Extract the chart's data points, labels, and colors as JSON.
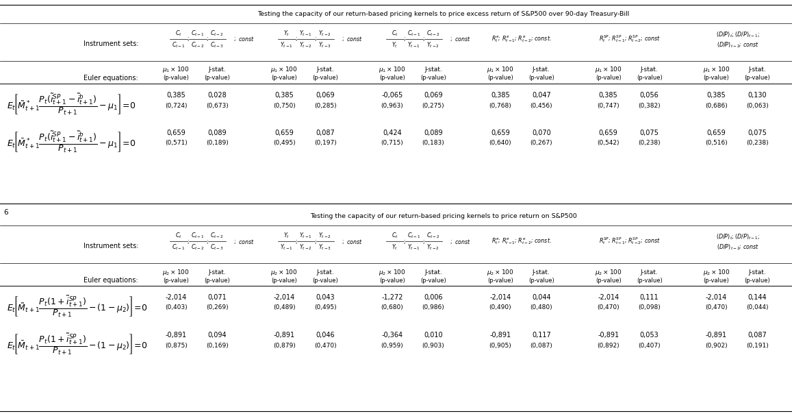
{
  "title1": "Testing the capacity of our return-based pricing kernels to price excess return of S&P500 over 90-day Treasury-Bill",
  "title2": "Testing the capacity of our return-based pricing kernels to price return on S&P500",
  "table1_data": [
    [
      "0,385",
      "0,028",
      "0,385",
      "0,069",
      "-0,065",
      "0,069",
      "0,385",
      "0,047",
      "0,385",
      "0,056",
      "0,385",
      "0,130"
    ],
    [
      "(0,724)",
      "(0,673)",
      "(0,750)",
      "(0,285)",
      "(0,963)",
      "(0,275)",
      "(0,768)",
      "(0,456)",
      "(0,747)",
      "(0,382)",
      "(0,686)",
      "(0,063)"
    ],
    [
      "0,659",
      "0,089",
      "0,659",
      "0,087",
      "0,424",
      "0,089",
      "0,659",
      "0,070",
      "0,659",
      "0,075",
      "0,659",
      "0,075"
    ],
    [
      "(0,571)",
      "(0,189)",
      "(0,495)",
      "(0,197)",
      "(0,715)",
      "(0,183)",
      "(0,640)",
      "(0,267)",
      "(0,542)",
      "(0,238)",
      "(0,516)",
      "(0,238)"
    ]
  ],
  "table2_data": [
    [
      "-2,014",
      "0,071",
      "-2,014",
      "0,043",
      "-1,272",
      "0,006",
      "-2,014",
      "0,044",
      "-2,014",
      "0,111",
      "-2,014",
      "0,144"
    ],
    [
      "(0,403)",
      "(0,269)",
      "(0,489)",
      "(0,495)",
      "(0,680)",
      "(0,986)",
      "(0,490)",
      "(0,480)",
      "(0,470)",
      "(0,098)",
      "(0,470)",
      "(0,044)"
    ],
    [
      "-0,891",
      "0,094",
      "-0,891",
      "0,046",
      "-0,364",
      "0,010",
      "-0,891",
      "0,117",
      "-0,891",
      "0,053",
      "-0,891",
      "0,087"
    ],
    [
      "(0,875)",
      "(0,169)",
      "(0,879)",
      "(0,470)",
      "(0,959)",
      "(0,903)",
      "(0,905)",
      "(0,087)",
      "(0,892)",
      "(0,407)",
      "(0,902)",
      "(0,191)"
    ]
  ],
  "bg_color": "#ffffff",
  "text_color": "#000000",
  "note": "6"
}
